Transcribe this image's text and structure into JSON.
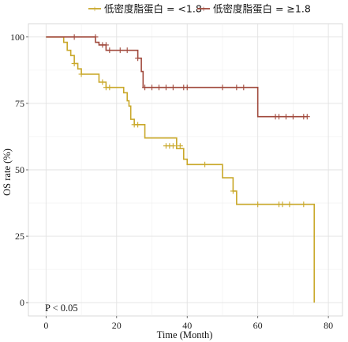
{
  "chart_data": {
    "type": "line",
    "subtype": "kaplan-meier",
    "xlabel": "Time (Month)",
    "ylabel": "OS rate (%)",
    "xlim": [
      -5,
      84
    ],
    "ylim": [
      -5,
      105
    ],
    "xticks": [
      0,
      20,
      40,
      60,
      80
    ],
    "yticks": [
      0,
      25,
      50,
      75,
      100
    ],
    "grid": true,
    "legend_position": "top",
    "annotation": "P < 0.05",
    "series": [
      {
        "name": "低密度脂蛋白 = <1.8",
        "color": "#C9A82A",
        "steps": [
          [
            0,
            100
          ],
          [
            5,
            100
          ],
          [
            5,
            98
          ],
          [
            6,
            98
          ],
          [
            6,
            95
          ],
          [
            7,
            95
          ],
          [
            7,
            93
          ],
          [
            8,
            93
          ],
          [
            8,
            90
          ],
          [
            9,
            90
          ],
          [
            9,
            88
          ],
          [
            10,
            88
          ],
          [
            10,
            86
          ],
          [
            15,
            86
          ],
          [
            15,
            83
          ],
          [
            17,
            83
          ],
          [
            17,
            81
          ],
          [
            22,
            81
          ],
          [
            22,
            79
          ],
          [
            23,
            79
          ],
          [
            23,
            76
          ],
          [
            23.5,
            76
          ],
          [
            23.5,
            74
          ],
          [
            24,
            74
          ],
          [
            24,
            69
          ],
          [
            25,
            69
          ],
          [
            25,
            67
          ],
          [
            28,
            67
          ],
          [
            28,
            62
          ],
          [
            37,
            62
          ],
          [
            37,
            58
          ],
          [
            39,
            58
          ],
          [
            39,
            54
          ],
          [
            40,
            54
          ],
          [
            40,
            52
          ],
          [
            50,
            52
          ],
          [
            50,
            47
          ],
          [
            53,
            47
          ],
          [
            53,
            42
          ],
          [
            54,
            42
          ],
          [
            54,
            37
          ],
          [
            76,
            37
          ],
          [
            76,
            0
          ]
        ],
        "censor": [
          [
            8,
            90
          ],
          [
            10,
            86
          ],
          [
            16,
            83
          ],
          [
            17,
            81
          ],
          [
            18,
            81
          ],
          [
            25,
            67
          ],
          [
            26,
            67
          ],
          [
            34,
            59
          ],
          [
            35,
            59
          ],
          [
            36,
            59
          ],
          [
            38,
            59
          ],
          [
            45,
            52
          ],
          [
            53,
            42
          ],
          [
            60,
            37
          ],
          [
            66,
            37
          ],
          [
            67,
            37
          ],
          [
            69,
            37
          ],
          [
            73,
            37
          ]
        ]
      },
      {
        "name": "低密度脂蛋白 = ≥1.8",
        "color": "#A0493C",
        "steps": [
          [
            0,
            100
          ],
          [
            14,
            100
          ],
          [
            14,
            98
          ],
          [
            15,
            98
          ],
          [
            15,
            97
          ],
          [
            17,
            97
          ],
          [
            17,
            95
          ],
          [
            26,
            95
          ],
          [
            26,
            92
          ],
          [
            27,
            92
          ],
          [
            27,
            87
          ],
          [
            27.5,
            87
          ],
          [
            27.5,
            81
          ],
          [
            60,
            81
          ],
          [
            60,
            70
          ],
          [
            74,
            70
          ]
        ],
        "censor": [
          [
            8,
            100
          ],
          [
            14,
            100
          ],
          [
            16,
            97
          ],
          [
            17,
            97
          ],
          [
            18,
            95
          ],
          [
            21,
            95
          ],
          [
            23,
            95
          ],
          [
            26,
            92
          ],
          [
            28,
            81
          ],
          [
            30,
            81
          ],
          [
            32,
            81
          ],
          [
            34,
            81
          ],
          [
            36,
            81
          ],
          [
            39,
            81
          ],
          [
            40,
            81
          ],
          [
            50,
            81
          ],
          [
            54,
            81
          ],
          [
            56,
            81
          ],
          [
            65,
            70
          ],
          [
            66,
            70
          ],
          [
            68,
            70
          ],
          [
            70,
            70
          ],
          [
            73,
            70
          ],
          [
            74,
            70
          ]
        ]
      }
    ]
  }
}
